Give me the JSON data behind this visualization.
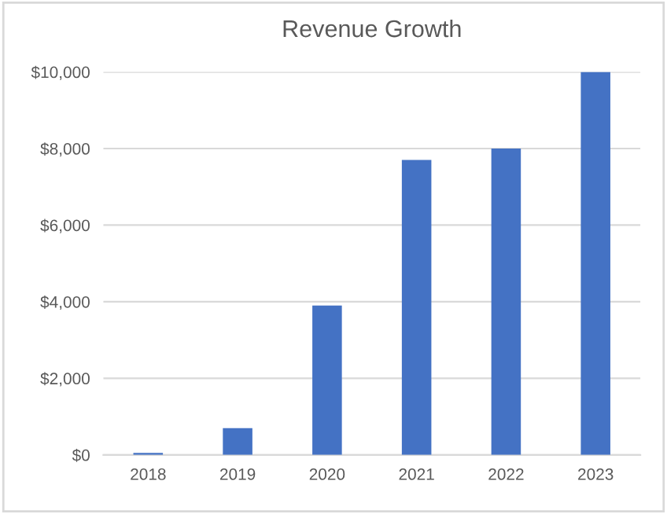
{
  "chart_data": {
    "type": "bar",
    "title": "Revenue Growth",
    "categories": [
      "2018",
      "2019",
      "2020",
      "2021",
      "2022",
      "2023"
    ],
    "values": [
      50,
      700,
      3900,
      7700,
      8000,
      10000
    ],
    "color": "#4472c4",
    "ylim": [
      0,
      10000
    ],
    "yticks": [
      {
        "value": 0,
        "label": "$0"
      },
      {
        "value": 2000,
        "label": "$2,000"
      },
      {
        "value": 4000,
        "label": "$4,000"
      },
      {
        "value": 6000,
        "label": "$6,000"
      },
      {
        "value": 8000,
        "label": "$8,000"
      },
      {
        "value": 10000,
        "label": "$10,000"
      }
    ],
    "grid": "y"
  }
}
